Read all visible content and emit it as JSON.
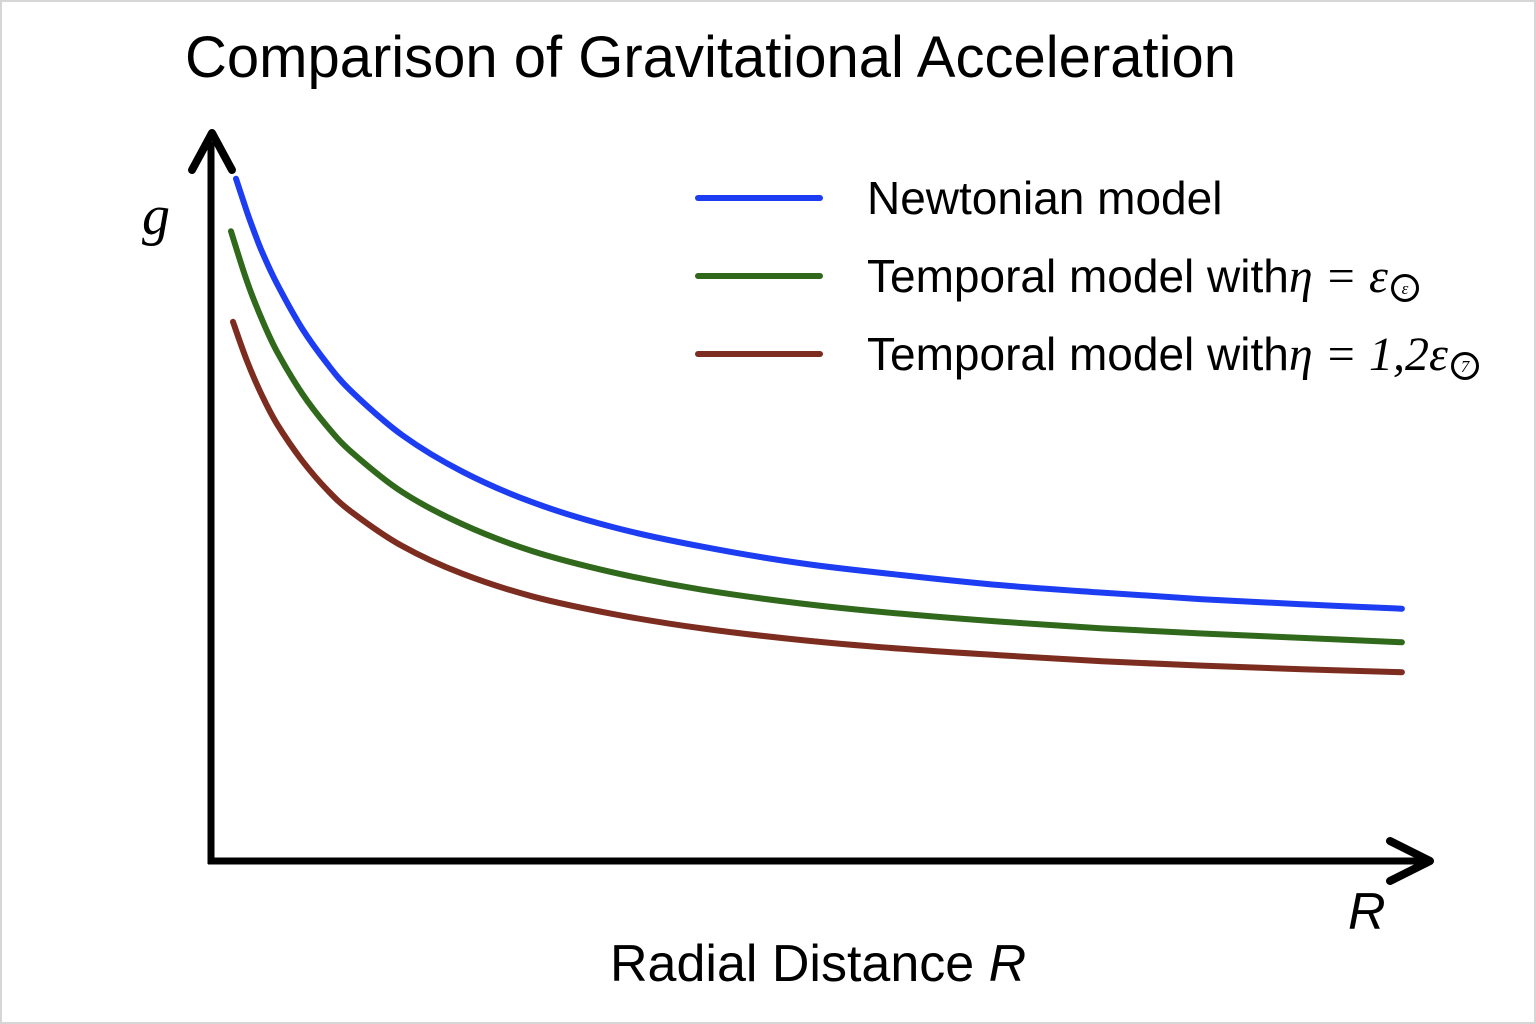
{
  "page": {
    "background": "#ffffff",
    "border_color": "#d6d6d6"
  },
  "title": {
    "text": "Comparison of Gravitational Acceleration"
  },
  "axes": {
    "y_symbol": "g",
    "x_symbol": "R",
    "x_caption_text": "Radial Distance ",
    "x_caption_symbol": "R",
    "color": "#000000",
    "arrows": true
  },
  "legend": {
    "position": "upper right",
    "items": [
      {
        "id": "newtonian",
        "label": "Newtonian model",
        "math": "",
        "subscript": "",
        "subscript_style": "",
        "color": "#1d3df2"
      },
      {
        "id": "temporal-eps",
        "label": "Temporal model with ",
        "math": "η = ε",
        "subscript": "ε",
        "subscript_style": "circled",
        "color": "#30691c"
      },
      {
        "id": "temporal-12eps",
        "label": "Temporal model with ",
        "math": "η = 1,2ε",
        "subscript": "7",
        "subscript_style": "circled",
        "color": "#7c2d20"
      }
    ]
  },
  "chart_data": {
    "type": "line",
    "title": "Comparison of Gravitational Acceleration",
    "xlabel": "Radial Distance R",
    "ylabel": "g",
    "x_range": [
      0,
      10.3
    ],
    "y_range": [
      0,
      1
    ],
    "grid": false,
    "tick_labels": "none (schematic sketch, arrow-ended axes)",
    "legend_position": "upper right",
    "series": [
      {
        "id": "newtonian",
        "name": "Newtonian model",
        "color": "#1d3df2",
        "R": [
          0.203,
          0.296,
          0.355,
          0.422,
          0.549,
          0.76,
          0.971,
          1.182,
          1.604,
          2.111,
          2.702,
          3.377,
          4.137,
          4.981,
          5.825,
          6.669,
          7.514,
          8.358,
          9.202,
          10.046
        ],
        "g": [
          0.936,
          0.89,
          0.864,
          0.836,
          0.792,
          0.731,
          0.683,
          0.644,
          0.585,
          0.535,
          0.493,
          0.459,
          0.432,
          0.409,
          0.393,
          0.379,
          0.369,
          0.36,
          0.353,
          0.347
        ]
      },
      {
        "id": "temporal-eps",
        "name": "Temporal model with η = ε(circled ε)",
        "color": "#30691c",
        "R": [
          0.16,
          0.296,
          0.422,
          0.549,
          0.76,
          0.971,
          1.182,
          1.604,
          2.111,
          2.702,
          3.377,
          4.137,
          4.981,
          5.825,
          6.669,
          7.514,
          8.358,
          9.202,
          10.046
        ],
        "g": [
          0.864,
          0.795,
          0.743,
          0.699,
          0.642,
          0.597,
          0.561,
          0.507,
          0.463,
          0.426,
          0.397,
          0.373,
          0.354,
          0.34,
          0.329,
          0.32,
          0.313,
          0.307,
          0.301
        ]
      },
      {
        "id": "temporal-12eps",
        "name": "Temporal model with η = 1,2ε(circled 7)",
        "color": "#7c2d20",
        "R": [
          0.177,
          0.296,
          0.422,
          0.549,
          0.76,
          0.971,
          1.182,
          1.604,
          2.111,
          2.702,
          3.377,
          4.137,
          4.981,
          5.825,
          6.669,
          7.514,
          8.358,
          9.202,
          10.046
        ],
        "g": [
          0.74,
          0.686,
          0.639,
          0.6,
          0.55,
          0.51,
          0.479,
          0.433,
          0.395,
          0.364,
          0.34,
          0.32,
          0.304,
          0.292,
          0.283,
          0.275,
          0.269,
          0.264,
          0.26
        ]
      }
    ]
  }
}
